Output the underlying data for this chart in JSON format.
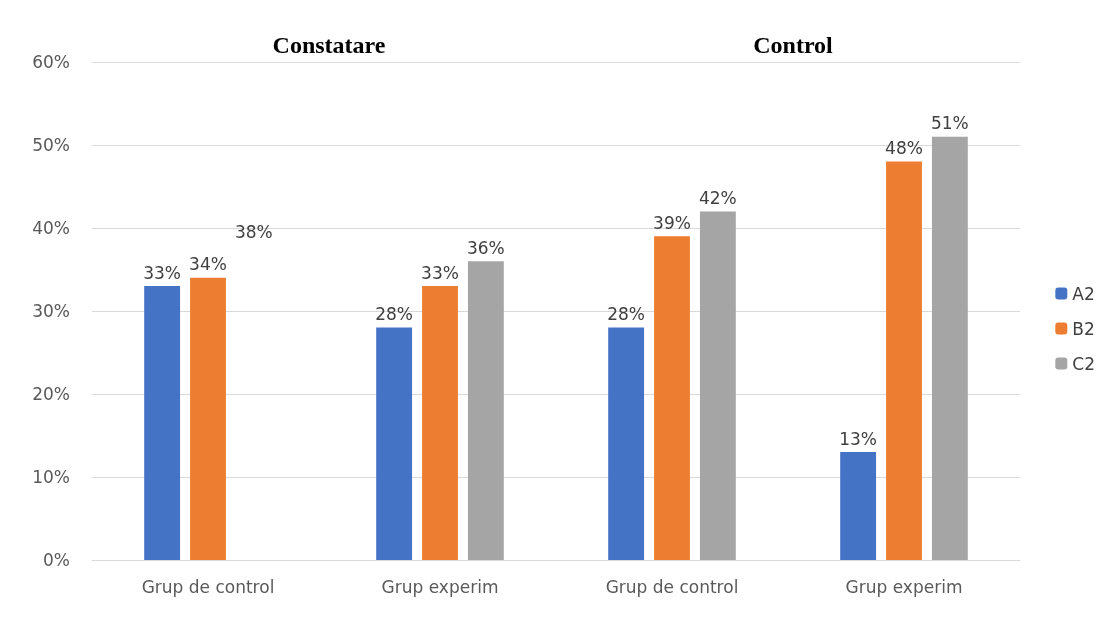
{
  "chart_data": {
    "type": "bar",
    "categories": [
      "Grup de control",
      "Grup experim",
      "Grup de control",
      "Grup experim"
    ],
    "series": [
      {
        "name": "A2",
        "color": "#4472c4",
        "values": [
          33,
          28,
          28,
          13
        ],
        "value_labels": [
          "33%",
          "28%",
          "28%",
          "13%"
        ]
      },
      {
        "name": "B2",
        "color": "#ed7d31",
        "values": [
          34,
          33,
          39,
          48
        ],
        "value_labels": [
          "34%",
          "33%",
          "39%",
          "48%"
        ]
      },
      {
        "name": "C2",
        "color": "#a5a5a5",
        "values": [
          null,
          36,
          42,
          51
        ],
        "value_labels": [
          null,
          "36%",
          "42%",
          "51%"
        ]
      }
    ],
    "annotations": [
      "Constatare",
      "Control",
      "38%"
    ],
    "ylim": [
      0,
      60
    ],
    "yticks": [
      {
        "value": 0,
        "label": "0%"
      },
      {
        "value": 10,
        "label": "10%"
      },
      {
        "value": 20,
        "label": "20%"
      },
      {
        "value": 30,
        "label": "30%"
      },
      {
        "value": 40,
        "label": "40%"
      },
      {
        "value": 50,
        "label": "50%"
      },
      {
        "value": 60,
        "label": "60%"
      }
    ],
    "grid": "y",
    "legend": "right"
  }
}
